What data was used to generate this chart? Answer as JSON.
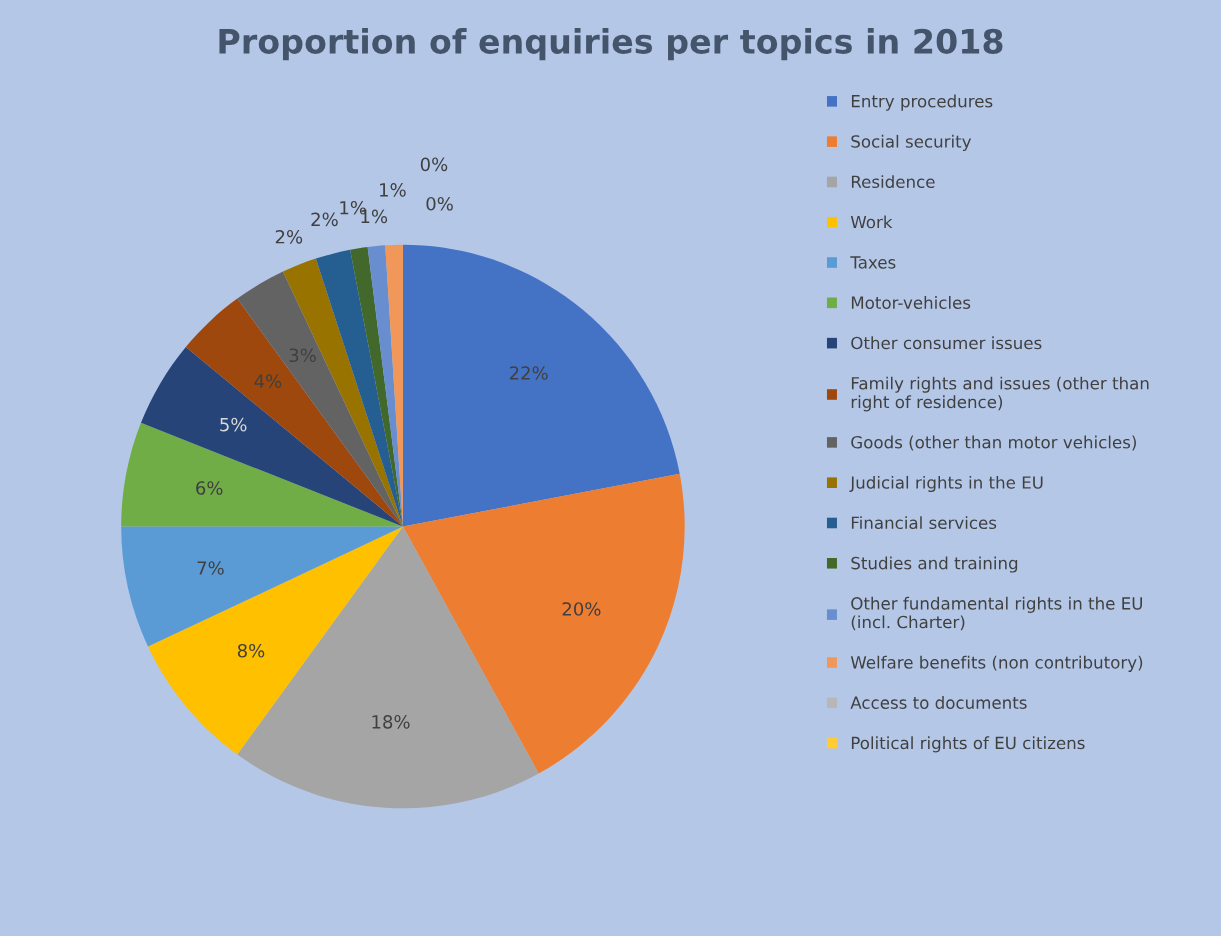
{
  "chart_data": {
    "type": "pie",
    "title": "Proportion of enquiries per topics in 2018",
    "categories": [
      "Entry procedures",
      "Social security",
      "Residence",
      "Work",
      "Taxes",
      "Motor-vehicles",
      "Other consumer issues",
      "Family rights and issues (other than right of residence)",
      "Goods (other than motor vehicles)",
      "Judicial rights in the EU",
      "Financial services",
      "Studies and training",
      "Other fundamental rights in the EU (incl. Charter)",
      "Welfare benefits (non contributory)",
      "Access to documents",
      "Political rights of EU citizens"
    ],
    "values": [
      22,
      20,
      18,
      8,
      7,
      6,
      5,
      4,
      3,
      2,
      2,
      1,
      1,
      1,
      0,
      0
    ],
    "value_labels": [
      "22%",
      "20%",
      "18%",
      "8%",
      "7%",
      "6%",
      "5%",
      "4%",
      "3%",
      "2%",
      "2%",
      "1%",
      "1%",
      "1%",
      "0%",
      "0%"
    ],
    "colors": [
      "#4472c4",
      "#ed7d31",
      "#a5a5a5",
      "#ffc000",
      "#5b9bd5",
      "#70ad47",
      "#264478",
      "#9e480e",
      "#636363",
      "#997300",
      "#255e91",
      "#43682b",
      "#698ed0",
      "#f1975a",
      "#b7b7b7",
      "#ffcd33"
    ],
    "legend": "right"
  }
}
